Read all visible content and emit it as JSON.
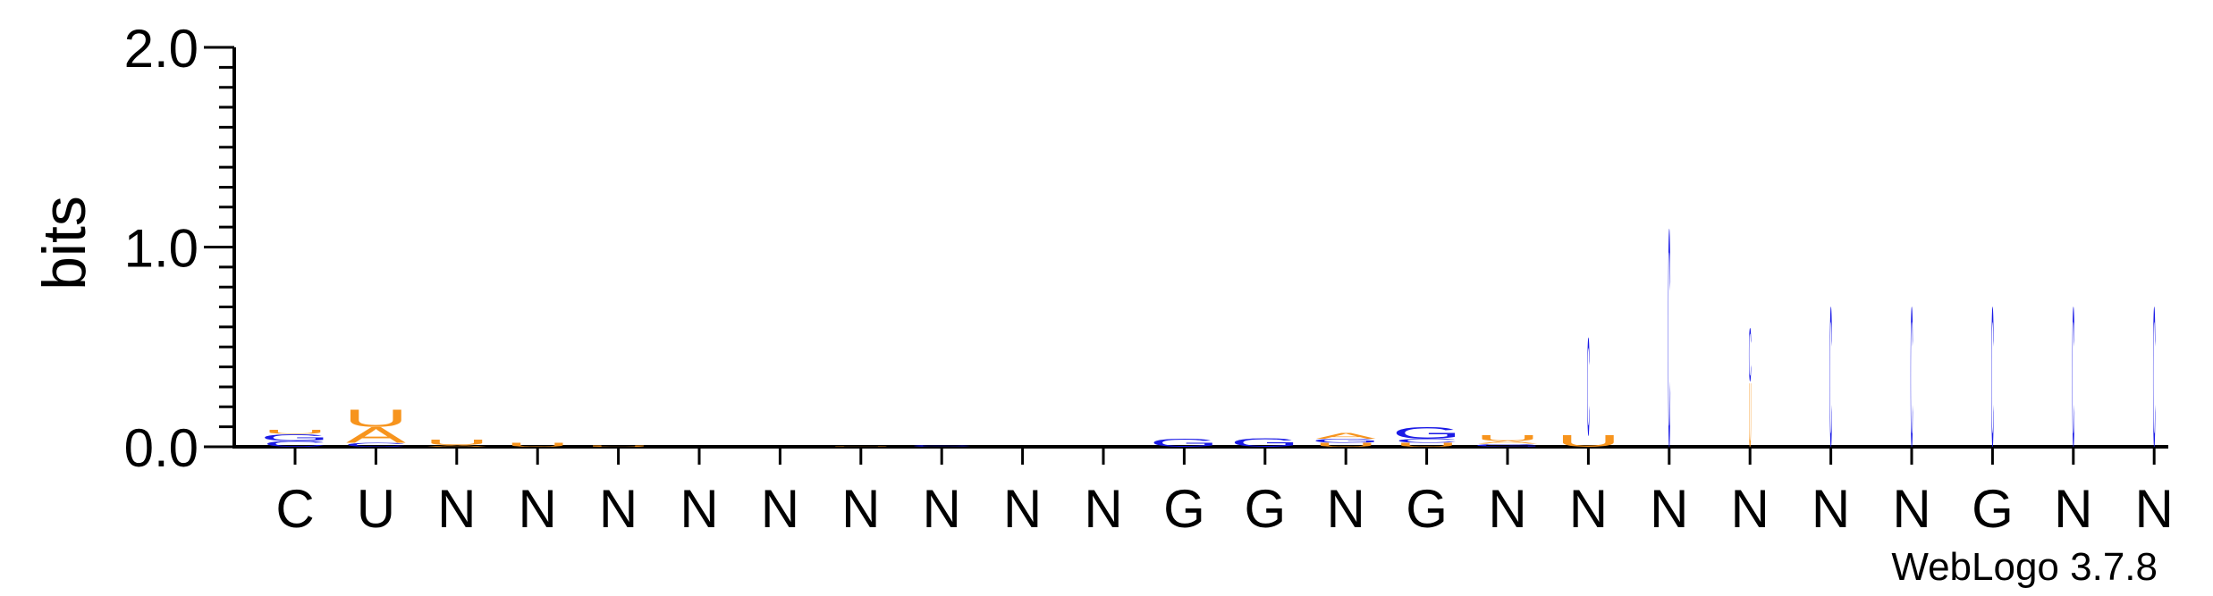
{
  "chart_data": {
    "type": "sequence-logo",
    "ylabel": "bits",
    "ylim": [
      0,
      2.0
    ],
    "yticks": [
      "0.0",
      "1.0",
      "2.0"
    ],
    "consensus": [
      "C",
      "U",
      "N",
      "N",
      "N",
      "N",
      "N",
      "N",
      "N",
      "N",
      "N",
      "G",
      "G",
      "N",
      "G",
      "N",
      "N",
      "N",
      "N",
      "N",
      "N",
      "G",
      "N",
      "N"
    ],
    "positions": [
      {
        "letters": [
          {
            "l": "C",
            "h": 0.03
          },
          {
            "l": "G",
            "h": 0.035
          },
          {
            "l": "U",
            "h": 0.02
          }
        ]
      },
      {
        "letters": [
          {
            "l": "C",
            "h": 0.02
          },
          {
            "l": "A",
            "h": 0.08
          },
          {
            "l": "U",
            "h": 0.09
          }
        ]
      },
      {
        "letters": [
          {
            "l": "A",
            "h": 0.01
          },
          {
            "l": "U",
            "h": 0.025
          }
        ]
      },
      {
        "letters": [
          {
            "l": "U",
            "h": 0.02
          }
        ]
      },
      {
        "letters": [
          {
            "l": "U",
            "h": 0.005
          }
        ]
      },
      {
        "letters": []
      },
      {
        "letters": []
      },
      {
        "letters": [
          {
            "l": "U",
            "h": 0.004
          }
        ]
      },
      {
        "letters": [
          {
            "l": "C",
            "h": 0.01
          }
        ]
      },
      {
        "letters": []
      },
      {
        "letters": []
      },
      {
        "letters": [
          {
            "l": "G",
            "h": 0.04
          }
        ]
      },
      {
        "letters": [
          {
            "l": "G",
            "h": 0.045
          }
        ]
      },
      {
        "letters": [
          {
            "l": "U",
            "h": 0.02
          },
          {
            "l": "G",
            "h": 0.02
          },
          {
            "l": "A",
            "h": 0.03
          }
        ]
      },
      {
        "letters": [
          {
            "l": "U",
            "h": 0.02
          },
          {
            "l": "C",
            "h": 0.02
          },
          {
            "l": "G",
            "h": 0.06
          }
        ]
      },
      {
        "letters": [
          {
            "l": "G",
            "h": 0.015
          },
          {
            "l": "A",
            "h": 0.015
          },
          {
            "l": "U",
            "h": 0.03
          }
        ]
      },
      {
        "letters": [
          {
            "l": "U",
            "h": 0.06
          },
          {
            "l": "C",
            "h": 0.5
          }
        ]
      },
      {
        "letters": [
          {
            "l": "C",
            "h": 1.12
          }
        ]
      },
      {
        "letters": [
          {
            "l": "U",
            "h": 0.33
          },
          {
            "l": "C",
            "h": 0.27
          }
        ]
      },
      {
        "letters": [
          {
            "l": "C",
            "h": 0.72
          }
        ]
      },
      {
        "letters": [
          {
            "l": "C",
            "h": 0.72
          }
        ]
      },
      {
        "letters": [
          {
            "l": "C",
            "h": 0.72
          }
        ]
      },
      {
        "letters": [
          {
            "l": "C",
            "h": 0.72
          }
        ]
      },
      {
        "letters": [
          {
            "l": "C",
            "h": 0.72
          }
        ]
      }
    ],
    "colors": {
      "A": "#F7941D",
      "U": "#F7941D",
      "C": "#1A1AE6",
      "G": "#1A1AE6"
    }
  },
  "footer": {
    "credit": "WebLogo 3.7.8"
  }
}
